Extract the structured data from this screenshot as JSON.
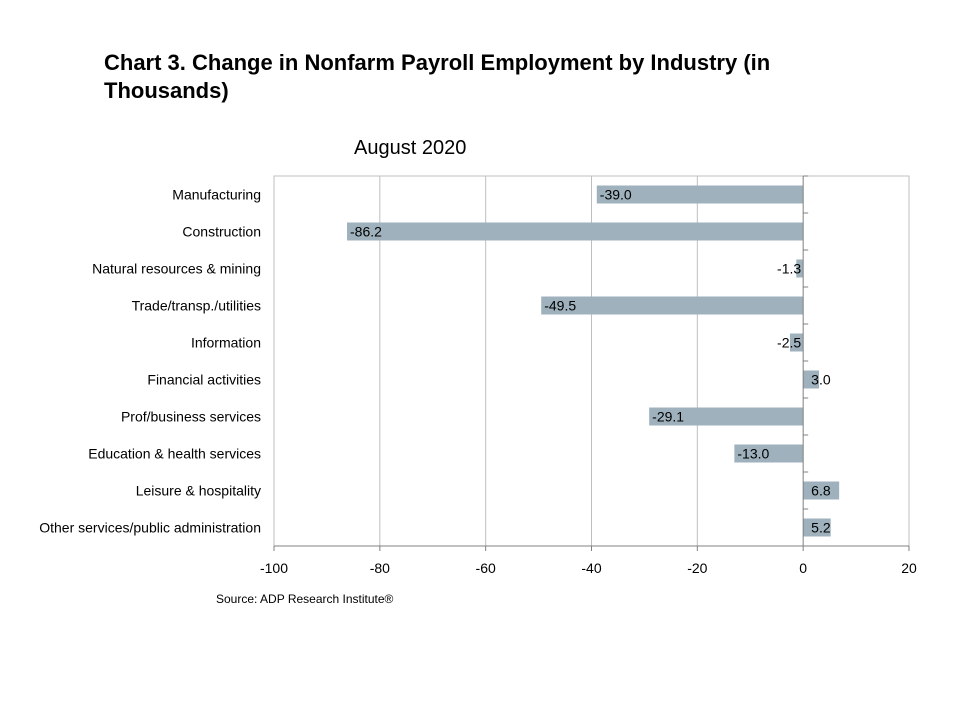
{
  "title": "Chart 3. Change in Nonfarm Payroll Employment by Industry (in Thousands)",
  "source": "Source: ADP Research Institute®",
  "colors": {
    "bar": "#9eb1bc",
    "grid": "#bfbfbf",
    "axis": "#808080",
    "text": "#000000"
  },
  "chart_data": {
    "type": "bar",
    "orientation": "horizontal",
    "title": "August 2020",
    "xlabel": "",
    "ylabel": "",
    "categories": [
      "Manufacturing",
      "Construction",
      "Natural resources & mining",
      "Trade/transp./utilities",
      "Information",
      "Financial activities",
      "Prof/business services",
      "Education & health services",
      "Leisure & hospitality",
      "Other services/public administration"
    ],
    "values": [
      -39.0,
      -86.2,
      -1.3,
      -49.5,
      -2.5,
      3.0,
      -29.1,
      -13.0,
      6.8,
      5.2
    ],
    "data_labels": [
      "-39.0",
      "-86.2",
      "-1.3",
      "-49.5",
      "-2.5",
      "3.0",
      "-29.1",
      "-13.0",
      "6.8",
      "5.2"
    ],
    "xlim": [
      -100,
      20
    ],
    "xticks": [
      -100,
      -80,
      -60,
      -40,
      -20,
      0,
      20
    ],
    "grid": true,
    "legend": "none"
  }
}
